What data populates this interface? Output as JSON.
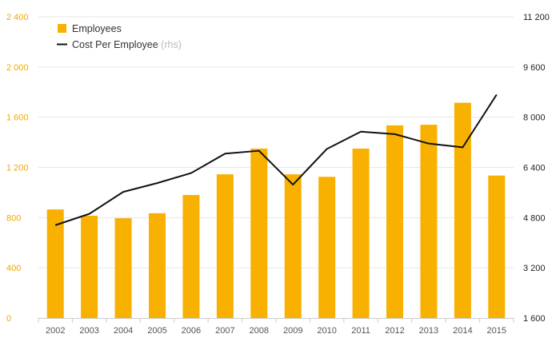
{
  "chart_data": {
    "type": "bar",
    "categories": [
      "2002",
      "2003",
      "2004",
      "2005",
      "2006",
      "2007",
      "2008",
      "2009",
      "2010",
      "2011",
      "2012",
      "2013",
      "2014",
      "2015"
    ],
    "series": [
      {
        "name": "Employees",
        "type": "bar",
        "axis": "left",
        "color": "#f8b100",
        "values": [
          865,
          815,
          795,
          835,
          980,
          1145,
          1350,
          1145,
          1125,
          1350,
          1535,
          1540,
          1715,
          1135
        ]
      },
      {
        "name": "Cost Per Employee",
        "type": "line",
        "axis": "right",
        "color": "#111111",
        "values": [
          4560,
          4920,
          5620,
          5900,
          6220,
          6840,
          6930,
          5850,
          6990,
          7540,
          7460,
          7160,
          7040,
          8720
        ]
      }
    ],
    "legend": {
      "items": [
        {
          "label": "Employees",
          "suffix": ""
        },
        {
          "label": "Cost Per Employee",
          "suffix": "(rhs)"
        }
      ],
      "position": "top-left"
    },
    "left_axis": {
      "range": [
        0,
        2400
      ],
      "ticks": [
        0,
        400,
        800,
        1200,
        1600,
        2000,
        2400
      ],
      "tick_labels": [
        "0",
        "400",
        "800",
        "1 200",
        "1 600",
        "2 000",
        "2 400"
      ],
      "color": "#f2a900"
    },
    "right_axis": {
      "range": [
        1600,
        11200
      ],
      "ticks": [
        1600,
        3200,
        4800,
        6400,
        8000,
        9600,
        11200
      ],
      "tick_labels": [
        "1 600",
        "3 200",
        "4 800",
        "6 400",
        "8 000",
        "9 600",
        "11 200"
      ]
    },
    "grid": true,
    "title": "",
    "xlabel": "",
    "ylabel": ""
  }
}
